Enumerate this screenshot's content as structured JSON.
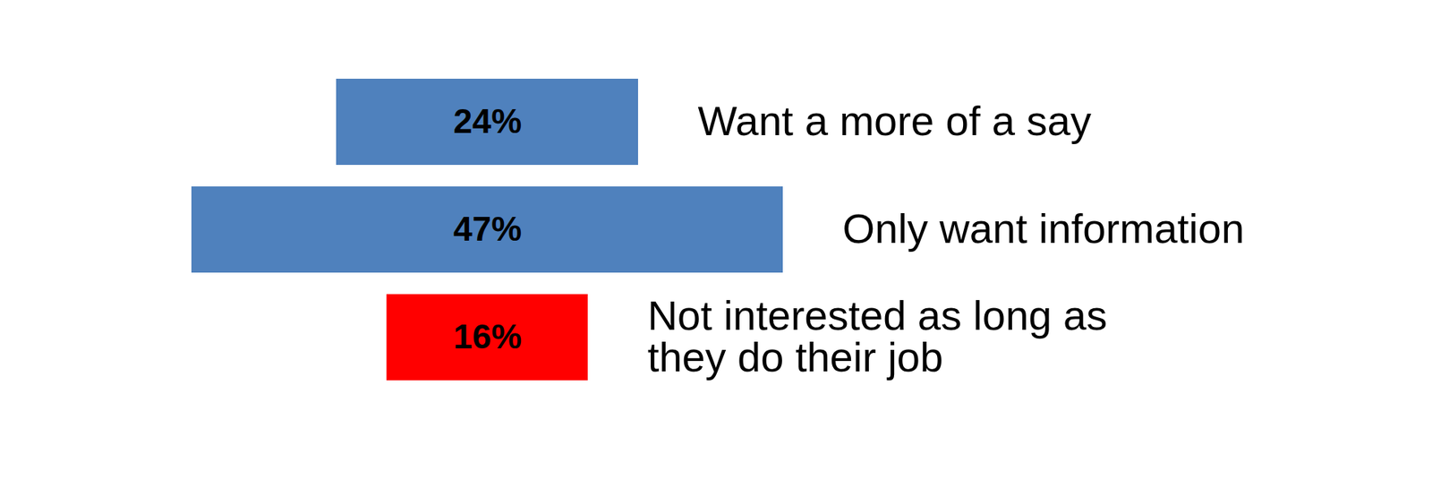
{
  "chart_data": {
    "type": "bar",
    "orientation": "horizontal",
    "categories": [
      "Want a more of a say",
      "Only want information",
      "Not interested as long as they do their job"
    ],
    "values": [
      24,
      47,
      16
    ],
    "value_labels": [
      "24%",
      "47%",
      "16%"
    ],
    "colors": [
      "#4f81bd",
      "#4f81bd",
      "#ff0000"
    ],
    "data_labels": true,
    "tick_labels": false
  }
}
